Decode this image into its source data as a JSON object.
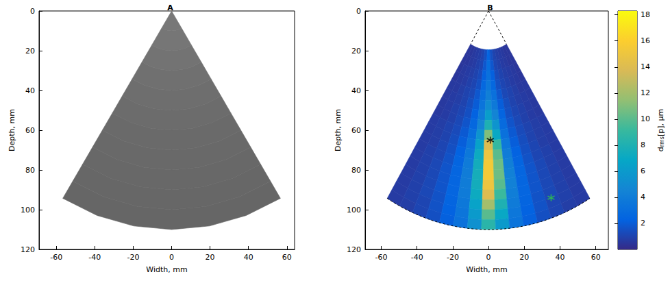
{
  "chart_data": [
    {
      "type": "heatmap",
      "title": "A",
      "x_label": "Width, mm",
      "y_label": "Depth, mm",
      "xlim": [
        -69,
        64
      ],
      "ylim": [
        0,
        120
      ],
      "xticks": [
        -60,
        -40,
        -20,
        0,
        20,
        40,
        60
      ],
      "yticks": [
        0,
        20,
        40,
        60,
        80,
        100,
        120
      ],
      "gray_range": [
        0,
        255
      ],
      "cells": {
        "theta_edges_deg": [
          -31,
          31
        ],
        "r_edges_mm": [
          0,
          10,
          20,
          30,
          40,
          50,
          60,
          70,
          80,
          90,
          100,
          110
        ],
        "values": [
          [
            120
          ],
          [
            118
          ],
          [
            115
          ],
          [
            112
          ],
          [
            110
          ],
          [
            108
          ],
          [
            106
          ],
          [
            105
          ],
          [
            104
          ],
          [
            103
          ],
          [
            102
          ]
        ]
      }
    },
    {
      "type": "heatmap",
      "title": "B",
      "x_label": "Width, mm",
      "y_label": "Depth, mm",
      "xlim": [
        -69,
        67
      ],
      "ylim": [
        0,
        120
      ],
      "xticks": [
        -60,
        -40,
        -20,
        0,
        20,
        40,
        60
      ],
      "yticks": [
        0,
        20,
        40,
        60,
        80,
        100,
        120
      ],
      "colorbar": {
        "range": [
          0,
          18.3
        ],
        "ticks": [
          2,
          4,
          6,
          8,
          10,
          12,
          14,
          16,
          18
        ],
        "label": {
          "base": "d",
          "subscript": "rms",
          "rest": "[p], μm"
        }
      },
      "cells": {
        "theta_edges_deg": [
          -31,
          -26.867,
          -22.733,
          -18.6,
          -14.467,
          -10.333,
          -6.2,
          -2.067,
          2.067,
          6.2,
          10.333,
          14.467,
          18.6,
          22.733,
          26.867,
          31
        ],
        "r_edges_mm": [
          19.5,
          25,
          30,
          35,
          40,
          45,
          50,
          55,
          60,
          65,
          70,
          75,
          80,
          85,
          90,
          95,
          100,
          105,
          110
        ],
        "values": [
          [
            0.5,
            0.5,
            0.6,
            0.7,
            0.8,
            1.0,
            1.5,
            2.5,
            1.5,
            1.0,
            0.8,
            0.7,
            0.6,
            0.5,
            0.5
          ],
          [
            0.5,
            0.5,
            0.6,
            0.7,
            0.9,
            1.1,
            1.8,
            3.0,
            1.8,
            1.1,
            0.9,
            0.7,
            0.6,
            0.5,
            0.5
          ],
          [
            0.5,
            0.6,
            0.7,
            0.8,
            1.0,
            1.3,
            2.2,
            3.2,
            2.2,
            1.3,
            1.0,
            0.8,
            0.7,
            0.6,
            0.5
          ],
          [
            0.5,
            0.6,
            0.7,
            0.9,
            1.1,
            1.5,
            2.6,
            3.6,
            2.6,
            1.5,
            1.1,
            0.9,
            0.7,
            0.6,
            0.5
          ],
          [
            0.6,
            0.6,
            0.8,
            1.0,
            1.2,
            1.8,
            3.0,
            4.2,
            3.2,
            1.8,
            1.2,
            1.0,
            0.8,
            0.6,
            0.6
          ],
          [
            0.6,
            0.7,
            0.8,
            1.0,
            1.4,
            2.0,
            3.4,
            5.0,
            3.8,
            2.1,
            1.4,
            1.0,
            0.8,
            0.7,
            0.6
          ],
          [
            0.6,
            0.7,
            0.9,
            1.1,
            1.5,
            2.3,
            3.9,
            6.2,
            4.5,
            2.4,
            1.5,
            1.1,
            0.9,
            0.7,
            0.6
          ],
          [
            0.6,
            0.7,
            0.9,
            1.2,
            1.7,
            2.6,
            4.6,
            8.0,
            5.6,
            2.8,
            1.7,
            1.2,
            0.9,
            0.7,
            0.6
          ],
          [
            0.7,
            0.8,
            1.0,
            1.3,
            1.9,
            3.0,
            5.5,
            11.0,
            7.0,
            3.2,
            1.9,
            1.3,
            1.0,
            0.8,
            0.7
          ],
          [
            0.7,
            0.8,
            1.0,
            1.4,
            2.1,
            3.4,
            6.5,
            14.0,
            9.0,
            3.6,
            2.1,
            1.4,
            1.0,
            0.8,
            0.7
          ],
          [
            0.7,
            0.8,
            1.1,
            1.5,
            2.3,
            3.7,
            7.2,
            15.0,
            10.0,
            4.0,
            2.3,
            1.5,
            1.1,
            0.8,
            0.7
          ],
          [
            0.7,
            0.9,
            1.1,
            1.6,
            2.4,
            3.9,
            7.5,
            15.5,
            10.5,
            4.2,
            2.4,
            1.6,
            1.1,
            0.9,
            0.7
          ],
          [
            0.7,
            0.9,
            1.2,
            1.7,
            2.5,
            4.0,
            7.6,
            15.5,
            10.5,
            4.3,
            2.5,
            1.7,
            1.2,
            0.9,
            0.7
          ],
          [
            0.7,
            0.9,
            1.2,
            1.7,
            2.5,
            4.0,
            7.5,
            15.0,
            10.0,
            4.3,
            2.5,
            1.7,
            1.2,
            0.9,
            0.7
          ],
          [
            0.7,
            0.9,
            1.2,
            1.7,
            2.5,
            3.9,
            7.2,
            14.0,
            9.2,
            4.1,
            2.5,
            1.7,
            1.2,
            0.9,
            0.7
          ],
          [
            0.7,
            0.9,
            1.2,
            1.6,
            2.4,
            3.7,
            6.6,
            12.0,
            8.0,
            3.9,
            2.4,
            1.6,
            1.2,
            0.9,
            0.7
          ],
          [
            0.7,
            0.9,
            1.1,
            1.6,
            2.3,
            3.5,
            6.0,
            10.0,
            7.0,
            3.6,
            2.3,
            1.6,
            1.1,
            0.9,
            0.7
          ],
          [
            0.7,
            0.8,
            1.1,
            1.5,
            2.2,
            3.3,
            5.4,
            8.5,
            6.0,
            3.4,
            2.2,
            1.5,
            1.1,
            0.8,
            0.7
          ]
        ]
      },
      "series": [
        {
          "type": "scatter",
          "marker": "asterisk",
          "color": "#000000",
          "x": [
            1
          ],
          "y": [
            65
          ]
        },
        {
          "type": "scatter",
          "marker": "asterisk",
          "color": "#2ecc40",
          "x": [
            35
          ],
          "y": [
            94
          ]
        }
      ]
    }
  ]
}
